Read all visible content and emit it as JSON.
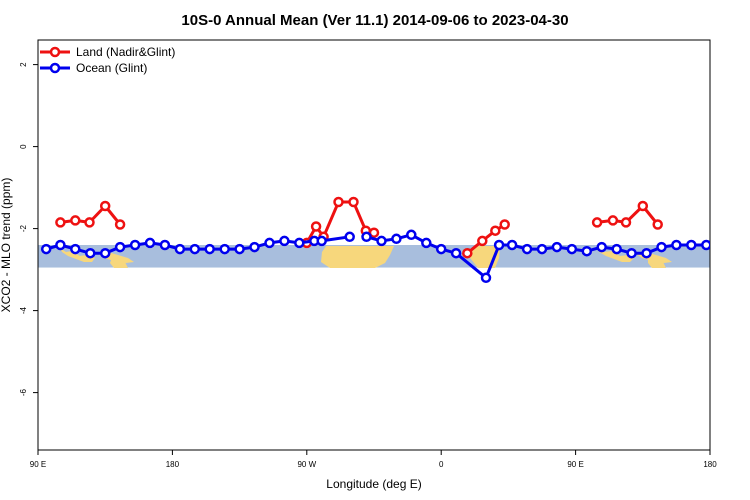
{
  "chart_data": {
    "type": "line",
    "title": "10S-0 Annual Mean (Ver 11.1)   2014-09-06 to 2023-04-30",
    "xlabel": "Longitude (deg E)",
    "ylabel": "XCO2 - MLO trend (ppm)",
    "xlim": [
      90,
      450
    ],
    "ylim": [
      -7.4,
      2.6
    ],
    "x_ticks": [
      {
        "value": 90,
        "label": "90 E"
      },
      {
        "value": 162,
        "label": "180"
      },
      {
        "value": 234,
        "label": "90 W"
      },
      {
        "value": 306,
        "label": "0"
      },
      {
        "value": 378,
        "label": "90 E"
      },
      {
        "value": 450,
        "label": "180"
      }
    ],
    "y_ticks": [
      {
        "value": 2,
        "label": "2"
      },
      {
        "value": 0,
        "label": "0"
      },
      {
        "value": -2,
        "label": "-2"
      },
      {
        "value": -4,
        "label": "-4"
      },
      {
        "value": -6,
        "label": "-6"
      }
    ],
    "band": {
      "ymin": -2.95,
      "ymax": -2.4,
      "color": "#a8bedd",
      "land_color": "#f7d77c"
    },
    "legend_position": "top-left",
    "series": [
      {
        "name": "Land (Nadir&Glint)",
        "color": "#ee1111",
        "segments": [
          [
            [
              102,
              -1.85
            ],
            [
              110,
              -1.8
            ],
            [
              117.6,
              -1.85
            ],
            [
              126,
              -1.45
            ],
            [
              134,
              -1.9
            ]
          ],
          [
            [
              234,
              -2.35
            ],
            [
              239,
              -1.95
            ],
            [
              243,
              -2.2
            ],
            [
              251,
              -1.35
            ],
            [
              259,
              -1.35
            ],
            [
              265.6,
              -2.05
            ],
            [
              270,
              -2.1
            ]
          ],
          [
            [
              320,
              -2.6
            ],
            [
              328,
              -2.3
            ],
            [
              335,
              -2.05
            ],
            [
              340,
              -1.9
            ]
          ],
          [
            [
              389.5,
              -1.85
            ],
            [
              398,
              -1.8
            ],
            [
              405,
              -1.85
            ],
            [
              414,
              -1.45
            ],
            [
              422,
              -1.9
            ]
          ]
        ]
      },
      {
        "name": "Ocean (Glint)",
        "color": "#0000ee",
        "segments": [
          [
            [
              94.4,
              -2.5
            ],
            [
              102,
              -2.4
            ],
            [
              110,
              -2.5
            ],
            [
              118,
              -2.6
            ],
            [
              126,
              -2.6
            ],
            [
              134,
              -2.45
            ],
            [
              142,
              -2.4
            ],
            [
              150,
              -2.35
            ],
            [
              158,
              -2.4
            ],
            [
              166,
              -2.5
            ],
            [
              174,
              -2.5
            ],
            [
              182,
              -2.5
            ],
            [
              190,
              -2.5
            ],
            [
              198,
              -2.5
            ],
            [
              206,
              -2.45
            ],
            [
              214,
              -2.35
            ],
            [
              222,
              -2.3
            ],
            [
              230,
              -2.35
            ],
            [
              238,
              -2.3
            ],
            [
              242,
              -2.3
            ],
            [
              257,
              -2.2
            ]
          ],
          [
            [
              266,
              -2.2
            ],
            [
              274,
              -2.3
            ],
            [
              282,
              -2.25
            ],
            [
              290,
              -2.15
            ],
            [
              298,
              -2.35
            ],
            [
              306,
              -2.5
            ],
            [
              314,
              -2.6
            ],
            [
              330,
              -3.2
            ],
            [
              337,
              -2.4
            ],
            [
              344,
              -2.4
            ],
            [
              352,
              -2.5
            ],
            [
              360,
              -2.5
            ],
            [
              368,
              -2.45
            ],
            [
              376,
              -2.5
            ],
            [
              384,
              -2.55
            ],
            [
              392,
              -2.45
            ],
            [
              400,
              -2.5
            ],
            [
              408,
              -2.6
            ],
            [
              416,
              -2.6
            ],
            [
              424,
              -2.45
            ],
            [
              432,
              -2.4
            ],
            [
              440,
              -2.4
            ],
            [
              448,
              -2.4
            ]
          ]
        ]
      }
    ]
  }
}
